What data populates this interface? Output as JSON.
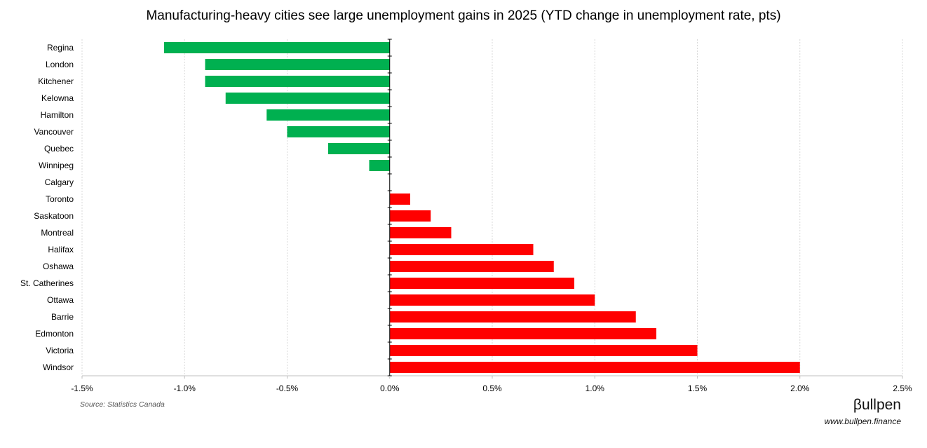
{
  "chart_data": {
    "type": "bar",
    "orientation": "horizontal",
    "title": "Manufacturing-heavy cities see large unemployment gains in 2025 (YTD change in unemployment rate, pts)",
    "categories": [
      "Regina",
      "London",
      "Kitchener",
      "Kelowna",
      "Hamilton",
      "Vancouver",
      "Quebec",
      "Winnipeg",
      "Calgary",
      "Toronto",
      "Saskatoon",
      "Montreal",
      "Halifax",
      "Oshawa",
      "St. Catherines",
      "Ottawa",
      "Barrie",
      "Edmonton",
      "Victoria",
      "Windsor"
    ],
    "values": [
      -1.1,
      -0.9,
      -0.9,
      -0.8,
      -0.6,
      -0.5,
      -0.3,
      -0.1,
      0.0,
      0.1,
      0.2,
      0.3,
      0.7,
      0.8,
      0.9,
      1.0,
      1.2,
      1.3,
      1.5,
      2.0
    ],
    "xlim": [
      -1.5,
      2.5
    ],
    "x_ticks": [
      -1.5,
      -1.0,
      -0.5,
      0.0,
      0.5,
      1.0,
      1.5,
      2.0,
      2.5
    ],
    "x_tick_labels": [
      "-1.5%",
      "-1.0%",
      "-0.5%",
      "0.0%",
      "0.5%",
      "1.0%",
      "1.5%",
      "2.0%",
      "2.5%"
    ],
    "xlabel": "",
    "ylabel": "",
    "grid": "vertical dotted",
    "colors": {
      "negative": "#00b050",
      "positive": "#ff0000",
      "grid": "#d9d9d9",
      "axis": "#000000"
    }
  },
  "footer": {
    "source": "Source: Statistics Canada",
    "brand": "βullpen",
    "url": "www.bullpen.finance"
  }
}
